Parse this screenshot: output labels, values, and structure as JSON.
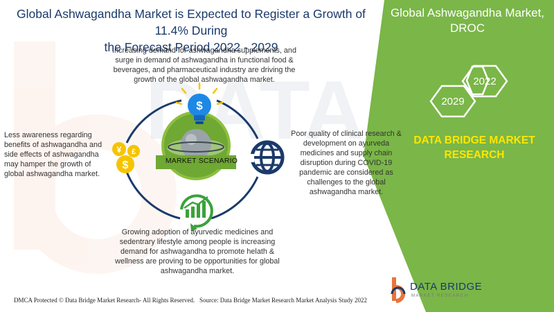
{
  "title_line1": "Global Ashwagandha Market is Expected to Register a Growth of 11.4% During",
  "title_line2": "the Forecast Period 2022 - 2029",
  "panel": {
    "title_line1": "Global Ashwagandha Market,",
    "title_line2": "DROC",
    "hex_year_top": "2022",
    "hex_year_bottom": "2029",
    "brand_line1": "DATA BRIDGE MARKET",
    "brand_line2": "RESEARCH",
    "green_color": "#7ab648",
    "yellow_color": "#ffe600"
  },
  "center_label": "MARKET SCENARIO",
  "drivers": "Increasing demand for ashwagandha supplements, and surge in demand of ashwagandha in functional food & beverages, and pharmaceutical industry are driving the growth of the global ashwagandha market.",
  "restraints": "Less awareness regarding benefits of ashwagandha and side effects of ashwagandha may hamper the growth of global ashwagandha market.",
  "challenges": "Poor quality of clinical research & development on ayurveda medicines and supply chain disruption during COVID-19 pandemic are considered as challenges to the global ashwagandha market.",
  "opportunities": "Growing adoption of ayurvedic medicines and sedentrary lifestyle among people is increasing demand for ashwagandha to promote helath & wellness are  proving to be opportunities for global ashwagandha market.",
  "icons": {
    "top": "lightbulb-dollar-icon",
    "left": "currency-coins-icon",
    "right": "globe-icon",
    "bottom": "growth-chart-icon",
    "center": "planet-icon"
  },
  "footer": {
    "left": "DMCA Protected © Data Bridge Market Research- All Rights Reserved.",
    "right": "Source: Data Bridge Market Research Market Analysis Study 2022"
  },
  "logo": {
    "word": "DATA BRIDGE",
    "sub": "MARKET RESEARCH"
  },
  "colors": {
    "title": "#1b3a6b",
    "ring": "#1b3a6b",
    "icon_blue": "#1e88e5",
    "icon_yellow": "#f5c400",
    "icon_green": "#3aa23a"
  }
}
